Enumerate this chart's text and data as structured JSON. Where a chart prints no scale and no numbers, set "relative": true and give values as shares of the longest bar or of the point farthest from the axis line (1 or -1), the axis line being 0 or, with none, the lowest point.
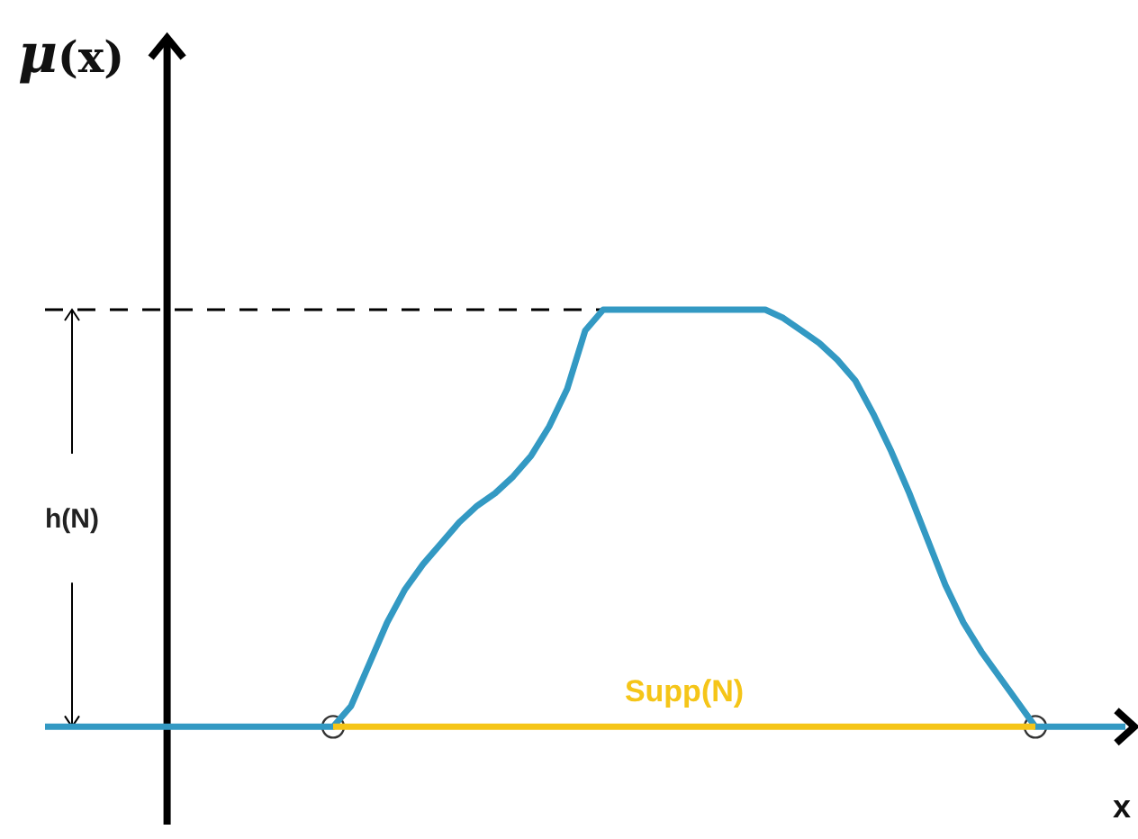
{
  "chart_data": {
    "type": "line",
    "relative": true,
    "ylabel": "μ(x)",
    "xlabel": "x",
    "categories": [
      null,
      null,
      null,
      null,
      null,
      null,
      null,
      null,
      null,
      null,
      null,
      null,
      null,
      null,
      null,
      null,
      null,
      null,
      null,
      null,
      null,
      null,
      null,
      null,
      null,
      null,
      null,
      null,
      null,
      null,
      null,
      null,
      null,
      null,
      null,
      null,
      null,
      null,
      null,
      null,
      null,
      null,
      null,
      null,
      null,
      null,
      null,
      null,
      null,
      null,
      null,
      null,
      null,
      null,
      null,
      null,
      null,
      null,
      null,
      null,
      null
    ],
    "series": [
      {
        "color": "#3399c3",
        "values": [
          0,
          0,
          0,
          0,
          0,
          0,
          0,
          0,
          0,
          0,
          0,
          0,
          0,
          0,
          0,
          0,
          0,
          0.05,
          0.15,
          0.25,
          0.33,
          0.39,
          0.44,
          0.49,
          0.53,
          0.56,
          0.6,
          0.65,
          0.72,
          0.81,
          0.95,
          1,
          1,
          1,
          1,
          1,
          1,
          1,
          1,
          1,
          1,
          0.98,
          0.95,
          0.92,
          0.88,
          0.83,
          0.75,
          0.66,
          0.56,
          0.45,
          0.34,
          0.25,
          0.18,
          0.12,
          0.06,
          0,
          0,
          0,
          0,
          0,
          0
        ]
      },
      {
        "name": "Supp(N)",
        "color": "#f5c518",
        "values": [
          null,
          null,
          null,
          null,
          null,
          null,
          null,
          null,
          null,
          null,
          null,
          null,
          null,
          null,
          null,
          null,
          0,
          0,
          0,
          0,
          0,
          0,
          0,
          0,
          0,
          0,
          0,
          0,
          0,
          0,
          0,
          0,
          0,
          0,
          0,
          0,
          0,
          0,
          0,
          0,
          0,
          0,
          0,
          0,
          0,
          0,
          0,
          0,
          0,
          0,
          0,
          0,
          0,
          0,
          0,
          0,
          null,
          null,
          null,
          null,
          null
        ]
      }
    ],
    "ref_lines": [
      {
        "axis": "y",
        "value": 1,
        "color": "#000000",
        "line_style": "dashed"
      }
    ],
    "annotations": [
      "h(N)"
    ]
  }
}
